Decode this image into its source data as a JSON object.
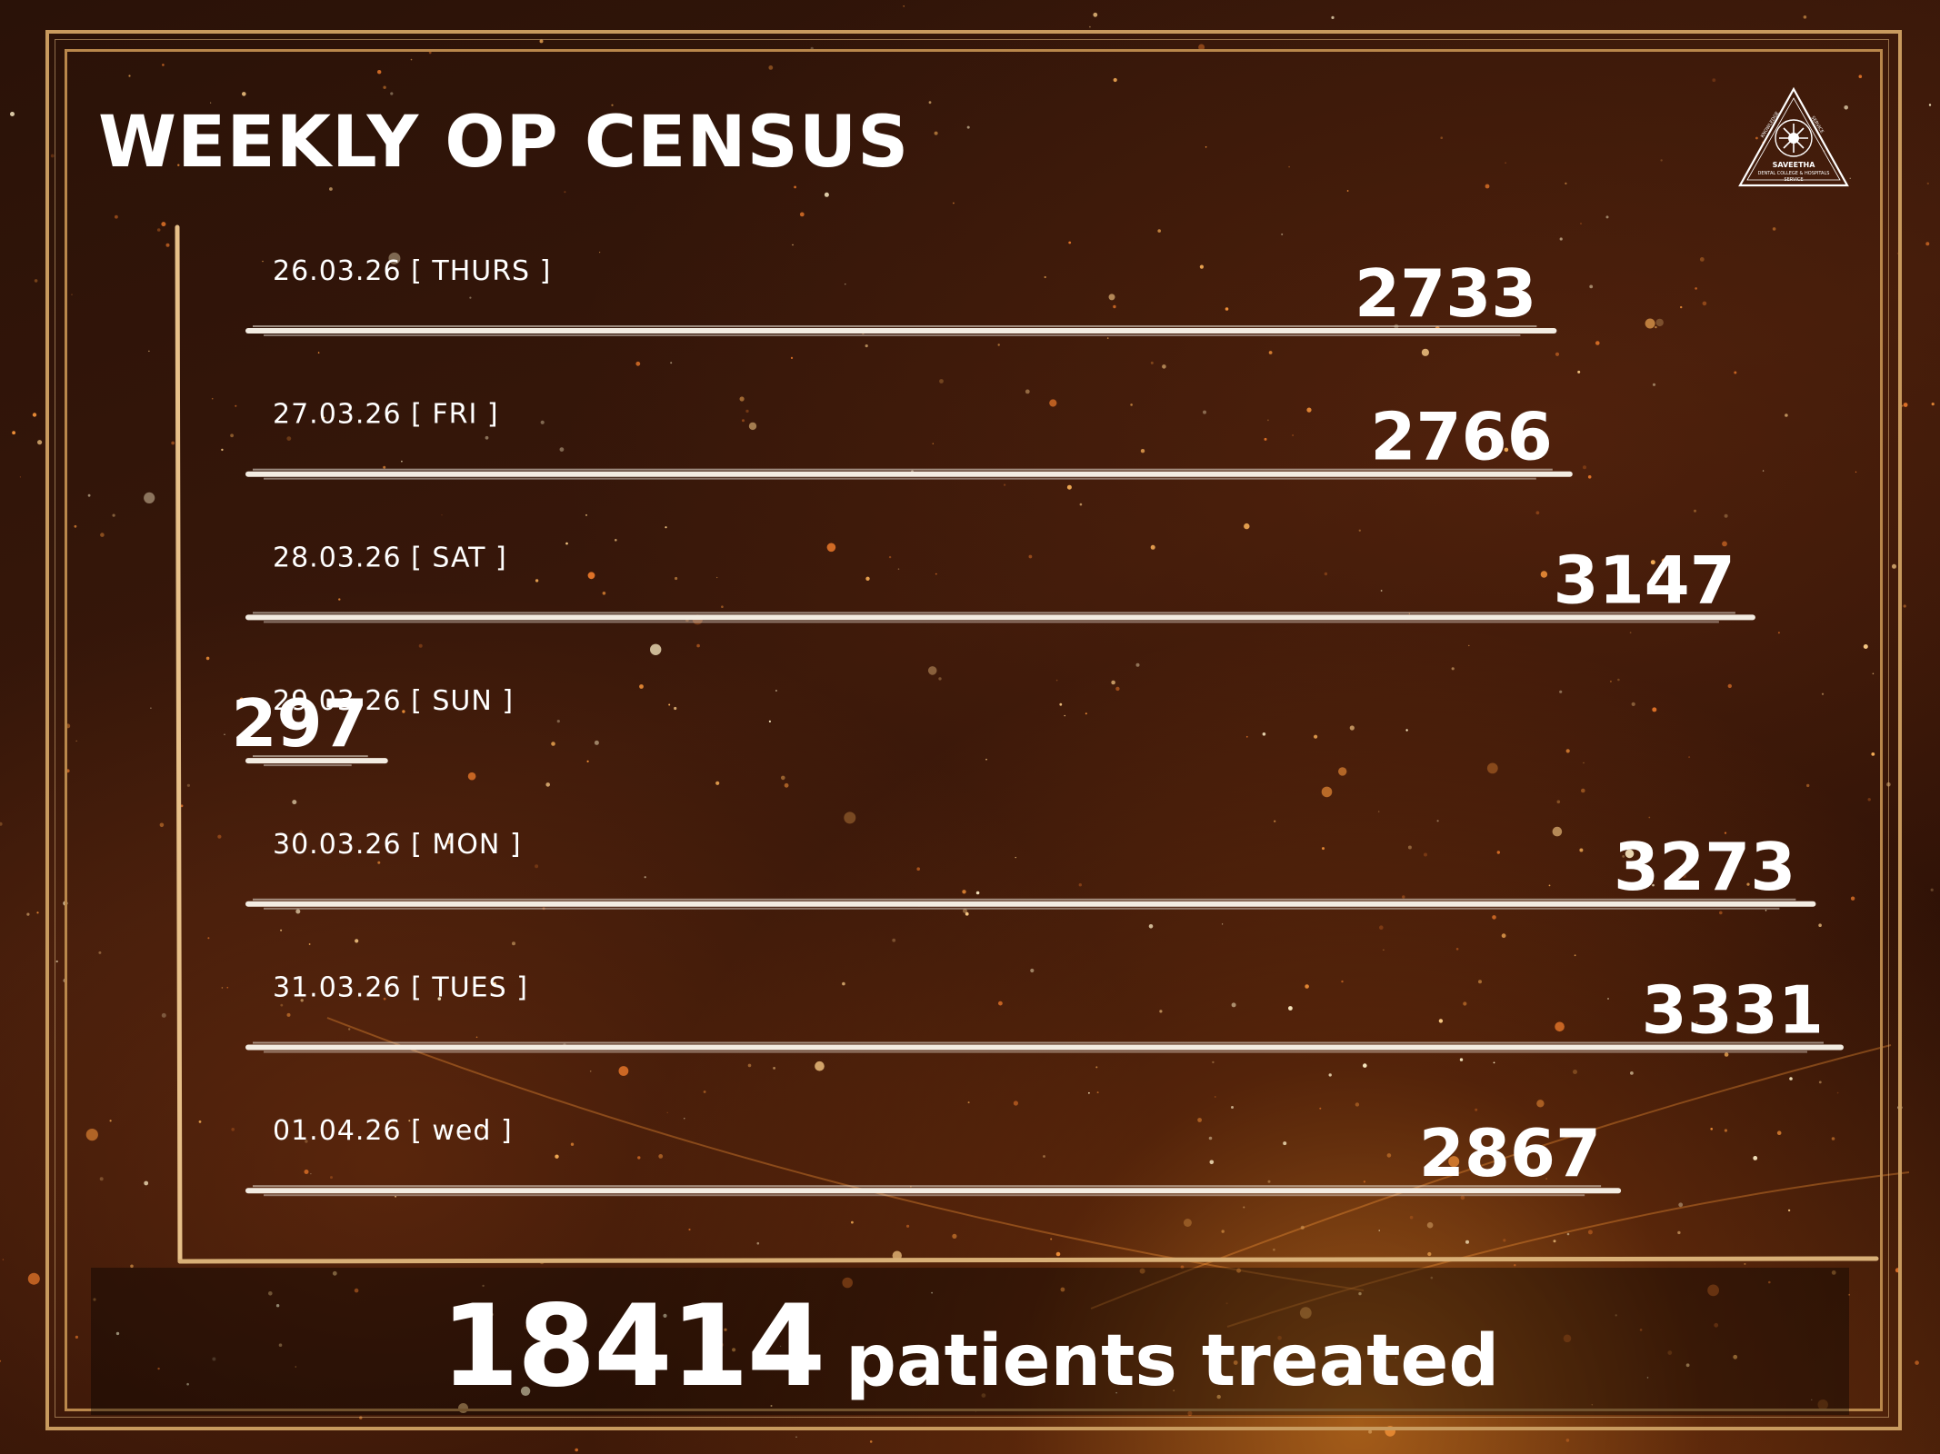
{
  "title": "WEEKLY OP CENSUS",
  "footer": {
    "total": "18414",
    "label": "patients treated"
  },
  "logo": {
    "text_lines": [
      "SAVEETHA",
      "DENTAL COLLEGE & HOSPITALS",
      "SERVICE"
    ],
    "arc_left": "KNOWLEDGE",
    "arc_right": "SERVICE"
  },
  "colors": {
    "frame": "#c89a5e",
    "bar": "#f3ece2",
    "text": "#ffffff",
    "background": "#2a1208"
  },
  "chart_data": {
    "type": "bar",
    "orientation": "horizontal",
    "categories": [
      "26.03.26 [ THURS ]",
      "27.03.26 [ FRI ]",
      "28.03.26 [ SAT ]",
      "29.03.26 [ SUN ]",
      "30.03.26 [ MON ]",
      "31.03.26 [ TUES ]",
      "01.04.26 [ wed ]"
    ],
    "values": [
      2733,
      2766,
      3147,
      297,
      3273,
      3331,
      2867
    ],
    "data_labels": [
      "2733",
      "2766",
      "3147",
      "297",
      "3273",
      "3331",
      "2867"
    ],
    "title": "WEEKLY OP CENSUS",
    "xlabel": "",
    "ylabel": "",
    "grid": false,
    "legend": "none"
  }
}
